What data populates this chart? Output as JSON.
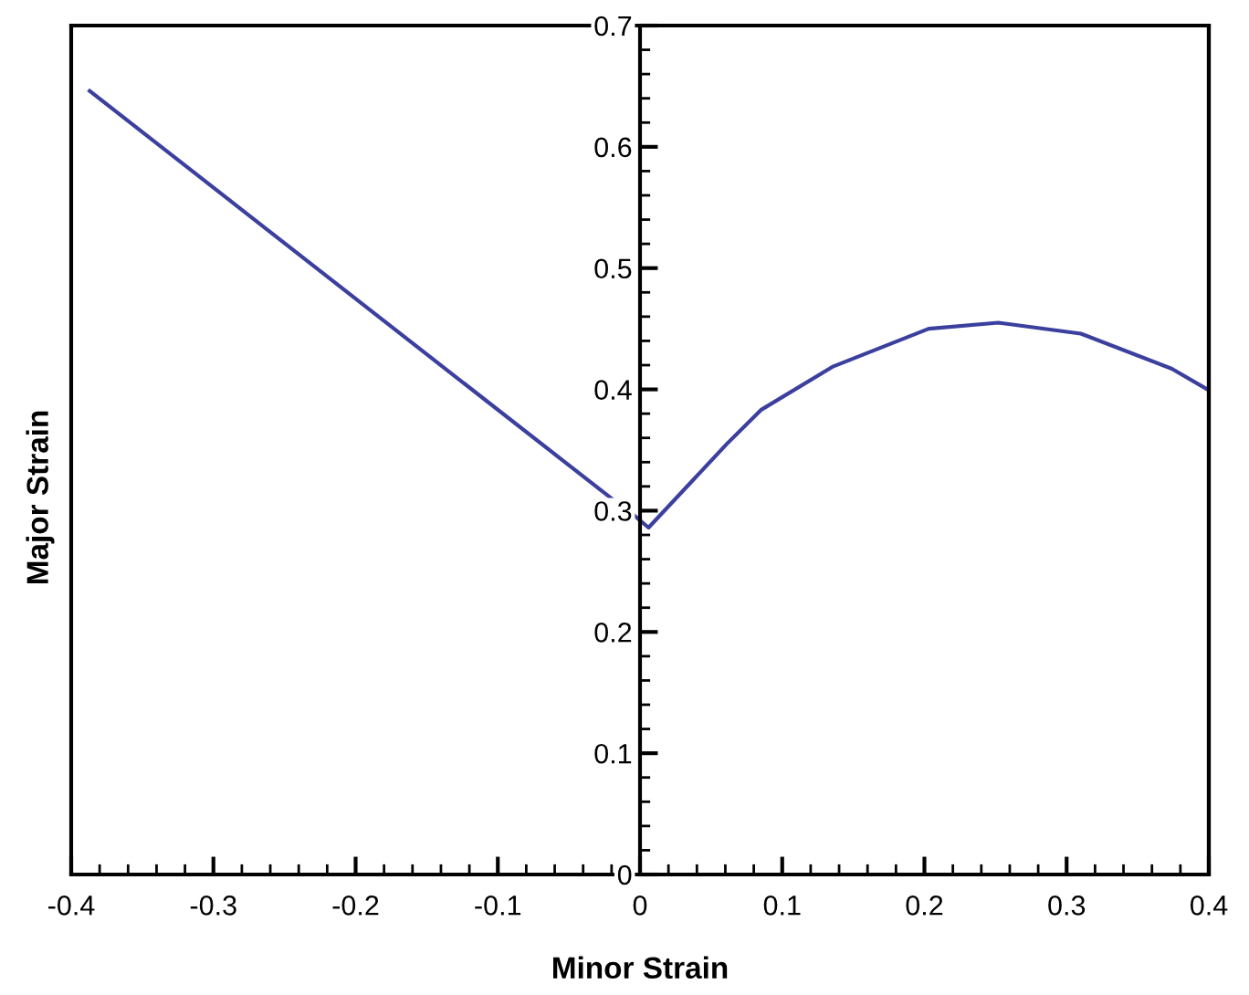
{
  "chart_data": {
    "type": "line",
    "xlabel": "Minor Strain",
    "ylabel": "Major Strain",
    "series": [
      {
        "color": "#3b3f9e",
        "x": [
          -0.387,
          -0.02
        ],
        "values": [
          0.646,
          0.31
        ]
      },
      {
        "color": "#3b3f9e",
        "x": [
          -0.004,
          0.006,
          0.061,
          0.085,
          0.136,
          0.203,
          0.252,
          0.31,
          0.374,
          0.399
        ],
        "values": [
          0.296,
          0.286,
          0.355,
          0.383,
          0.419,
          0.45,
          0.455,
          0.446,
          0.417,
          0.4
        ]
      }
    ],
    "xlim": [
      -0.4,
      0.4
    ],
    "xticks": [
      -0.4,
      -0.3,
      -0.2,
      -0.1,
      0,
      0.1,
      0.2,
      0.3,
      0.4
    ],
    "ylim": [
      0,
      0.7
    ],
    "yticks": [
      0,
      0.1,
      0.2,
      0.3,
      0.4,
      0.5,
      0.6,
      0.7
    ],
    "grid": false,
    "legend": false,
    "marker": "none",
    "line_style": "solid"
  }
}
